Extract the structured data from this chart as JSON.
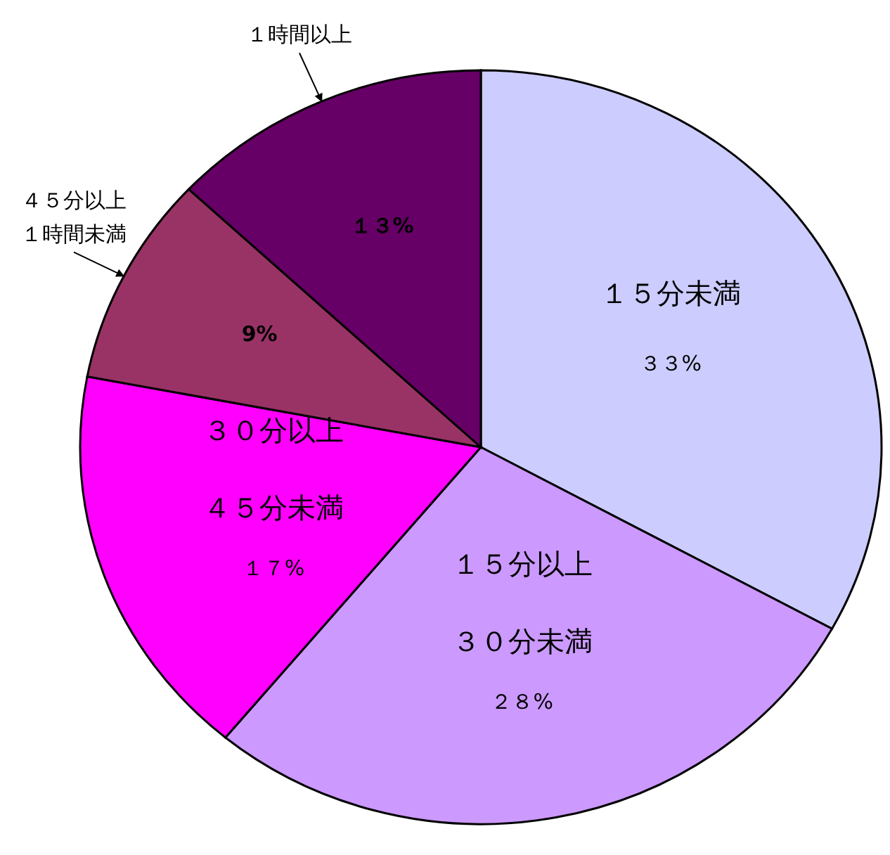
{
  "chart_data": {
    "type": "pie",
    "categories": [
      "１５分未満",
      "１５分以上３０分未満",
      "３０分以上４５分未満",
      "４５分以上１時間未満",
      "１時間以上"
    ],
    "values": [
      33,
      28,
      17,
      9,
      13
    ],
    "colors": [
      "#ccccff",
      "#cc99ff",
      "#ff00ff",
      "#993366",
      "#660066"
    ],
    "value_labels": [
      "３３%",
      "２８%",
      "１７%",
      "9%",
      "１３%"
    ]
  }
}
